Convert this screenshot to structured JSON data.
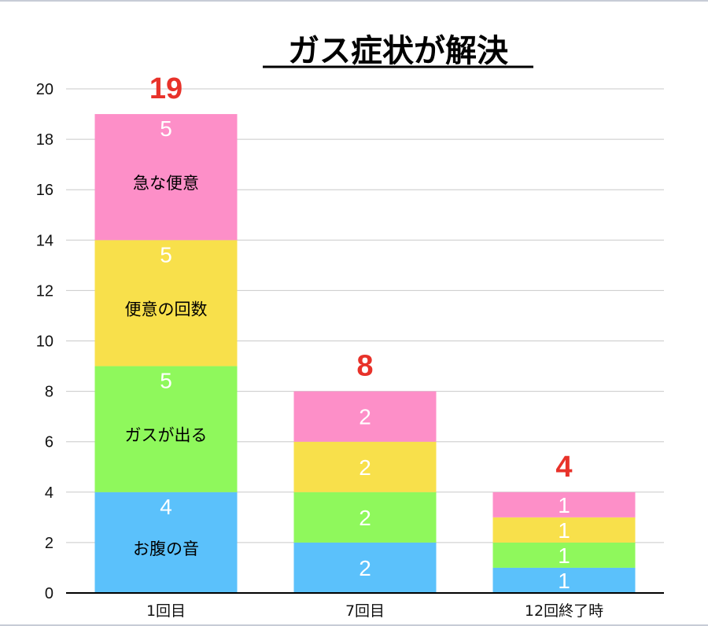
{
  "chart_data": {
    "type": "bar",
    "stacked": true,
    "title": "ガス症状が解決",
    "categories": [
      "1回目",
      "7回目",
      "12回終了時"
    ],
    "series": [
      {
        "name": "お腹の音",
        "color": "#5bc1fb",
        "values": [
          4,
          2,
          1
        ]
      },
      {
        "name": "ガスが出る",
        "color": "#8ff85c",
        "values": [
          5,
          2,
          1
        ]
      },
      {
        "name": "便意の回数",
        "color": "#f8e04b",
        "values": [
          5,
          2,
          1
        ]
      },
      {
        "name": "急な便意",
        "color": "#fd8fc8",
        "values": [
          5,
          2,
          1
        ]
      }
    ],
    "totals": [
      19,
      8,
      4
    ],
    "total_color": "#e8322a",
    "ylim": [
      0,
      20
    ],
    "yticks": [
      0,
      2,
      4,
      6,
      8,
      10,
      12,
      14,
      16,
      18,
      20
    ],
    "grid": true,
    "legend": "inline labels inside first bar"
  }
}
